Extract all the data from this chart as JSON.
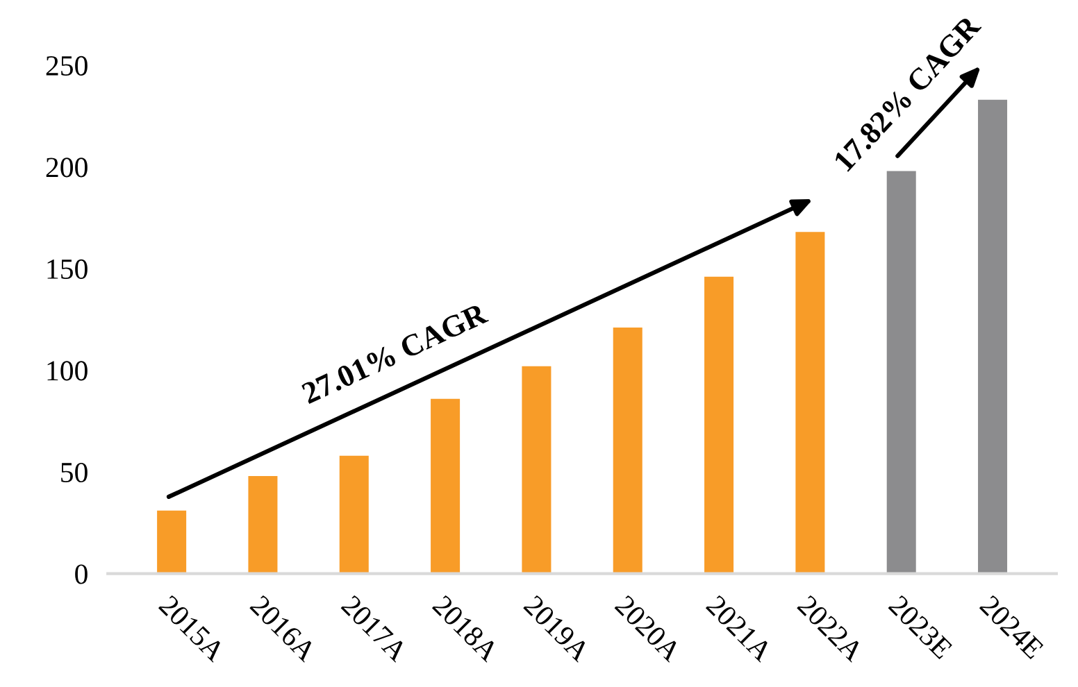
{
  "chart_data": {
    "type": "bar",
    "categories": [
      "2015A",
      "2016A",
      "2017A",
      "2018A",
      "2019A",
      "2020A",
      "2021A",
      "2022A",
      "2023E",
      "2024E"
    ],
    "values": [
      31,
      48,
      58,
      86,
      102,
      121,
      146,
      168,
      198,
      233
    ],
    "colors": [
      "#f89c28",
      "#f89c28",
      "#f89c28",
      "#f89c28",
      "#f89c28",
      "#f89c28",
      "#f89c28",
      "#f89c28",
      "#8c8c8e",
      "#8c8c8e"
    ],
    "ylim": [
      0,
      250
    ],
    "yticks": [
      0,
      50,
      100,
      150,
      200,
      250
    ],
    "grid": false,
    "legend": false,
    "annotations": [
      "27.01% CAGR",
      "17.82% CAGR"
    ]
  }
}
